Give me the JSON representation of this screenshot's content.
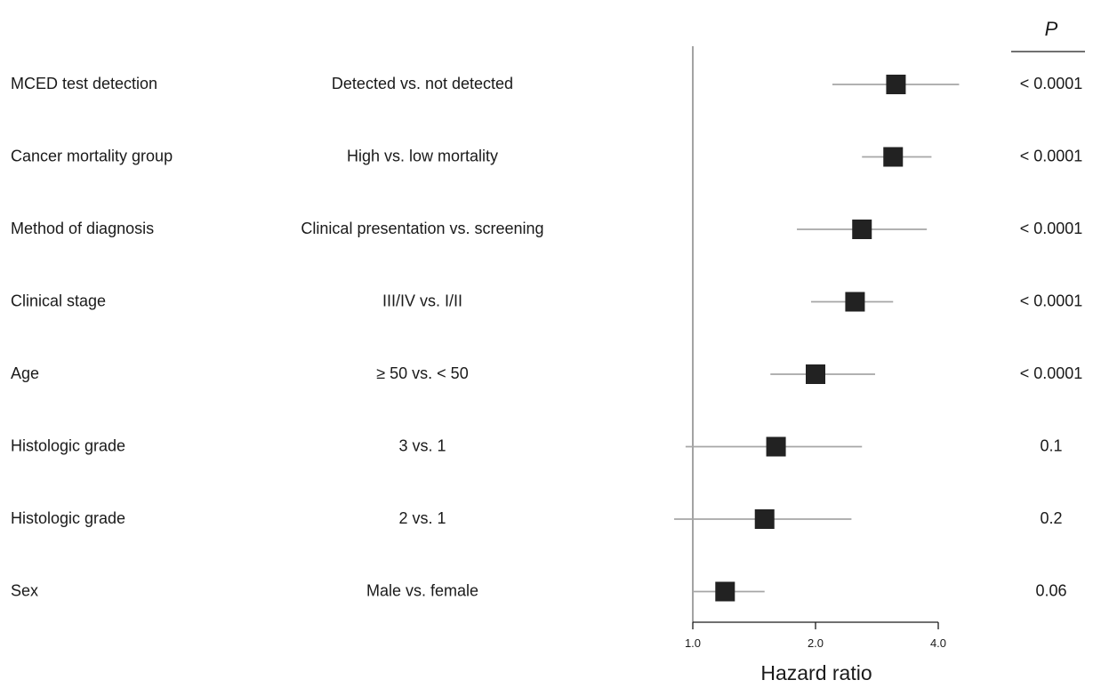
{
  "chart_data": {
    "type": "forest",
    "xlabel": "Hazard ratio",
    "x_scale": "log2",
    "xlim": [
      1.0,
      4.0
    ],
    "ticks": [
      "1.0",
      "2.0",
      "4.0"
    ],
    "reference_line": 1.0,
    "p_header": "P",
    "rows": [
      {
        "variable": "MCED test detection",
        "comparison": "Detected vs. not detected",
        "hr": 3.15,
        "lo": 2.2,
        "hi": 4.5,
        "p": "< 0.0001"
      },
      {
        "variable": "Cancer mortality group",
        "comparison": "High vs. low mortality",
        "hr": 3.1,
        "lo": 2.6,
        "hi": 3.85,
        "p": "< 0.0001"
      },
      {
        "variable": "Method of diagnosis",
        "comparison": "Clinical presentation vs. screening",
        "hr": 2.6,
        "lo": 1.8,
        "hi": 3.75,
        "p": "< 0.0001"
      },
      {
        "variable": "Clinical stage",
        "comparison": "III/IV vs. I/II",
        "hr": 2.5,
        "lo": 1.95,
        "hi": 3.1,
        "p": "< 0.0001"
      },
      {
        "variable": "Age",
        "comparison": "≥ 50 vs. < 50",
        "hr": 2.0,
        "lo": 1.55,
        "hi": 2.8,
        "p": "< 0.0001"
      },
      {
        "variable": "Histologic grade",
        "comparison": "3 vs. 1",
        "hr": 1.6,
        "lo": 0.96,
        "hi": 2.6,
        "p": "0.1"
      },
      {
        "variable": "Histologic grade",
        "comparison": "2 vs. 1",
        "hr": 1.5,
        "lo": 0.9,
        "hi": 2.45,
        "p": "0.2"
      },
      {
        "variable": "Sex",
        "comparison": "Male vs. female",
        "hr": 1.2,
        "lo": 1.0,
        "hi": 1.5,
        "p": "0.06"
      }
    ]
  }
}
